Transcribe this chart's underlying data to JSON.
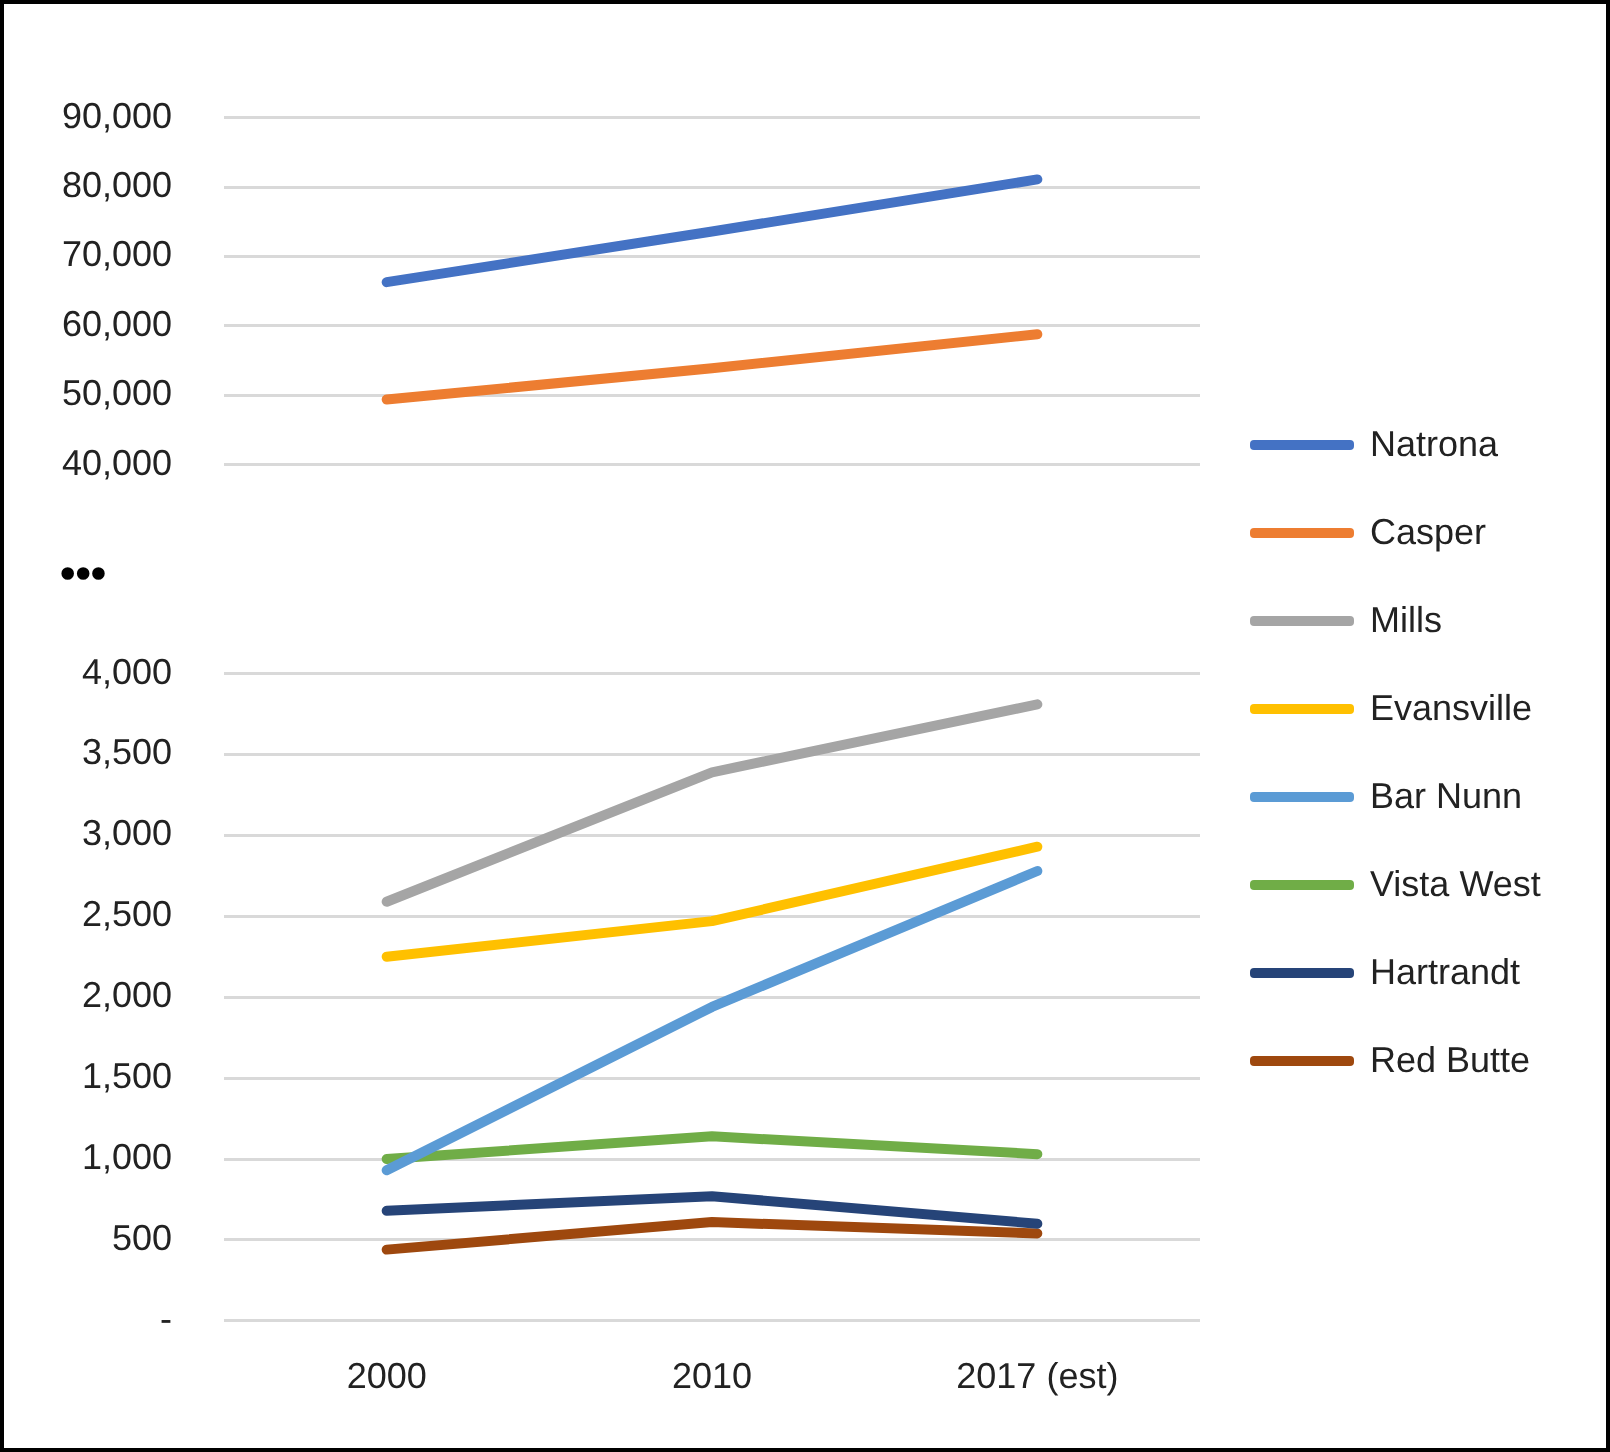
{
  "chart_data": [
    {
      "type": "line",
      "categories": [
        null,
        null,
        null
      ],
      "ylim": [
        40000,
        90000
      ],
      "yticks": [
        {
          "value": 40000,
          "label": "40,000"
        },
        {
          "value": 50000,
          "label": "50,000"
        },
        {
          "value": 60000,
          "label": "60,000"
        },
        {
          "value": 70000,
          "label": "70,000"
        },
        {
          "value": 80000,
          "label": "80,000"
        },
        {
          "value": 90000,
          "label": "90,000"
        }
      ],
      "grid": "y",
      "legend": "right",
      "marker": "none",
      "annotations": [
        "•••"
      ],
      "series": [
        {
          "name": "Natrona",
          "color": "#4472c4",
          "values": [
            66300,
            73600,
            81100
          ]
        },
        {
          "name": "Casper",
          "color": "#ed7d31",
          "values": [
            49400,
            53900,
            58800
          ]
        }
      ]
    },
    {
      "type": "line",
      "categories": [
        "2000",
        "2010",
        "2017 (est)"
      ],
      "ylim": [
        0,
        4000
      ],
      "yticks": [
        {
          "value": 0,
          "label": "-"
        },
        {
          "value": 500,
          "label": "500"
        },
        {
          "value": 1000,
          "label": "1,000"
        },
        {
          "value": 1500,
          "label": "1,500"
        },
        {
          "value": 2000,
          "label": "2,000"
        },
        {
          "value": 2500,
          "label": "2,500"
        },
        {
          "value": 3000,
          "label": "3,000"
        },
        {
          "value": 3500,
          "label": "3,500"
        },
        {
          "value": 4000,
          "label": "4,000"
        }
      ],
      "grid": "y",
      "legend": "right",
      "marker": "none",
      "series": [
        {
          "name": "Mills",
          "color": "#a5a5a5",
          "values": [
            2590,
            3390,
            3810
          ]
        },
        {
          "name": "Evansville",
          "color": "#ffc000",
          "values": [
            2250,
            2470,
            2930
          ]
        },
        {
          "name": "Bar Nunn",
          "color": "#5b9bd5",
          "values": [
            930,
            1940,
            2780
          ]
        },
        {
          "name": "Vista West",
          "color": "#70ad47",
          "values": [
            1000,
            1140,
            1030
          ]
        },
        {
          "name": "Hartrandt",
          "color": "#264478",
          "values": [
            680,
            770,
            600
          ]
        },
        {
          "name": "Red Butte",
          "color": "#9e480e",
          "values": [
            440,
            610,
            540
          ]
        }
      ]
    }
  ]
}
